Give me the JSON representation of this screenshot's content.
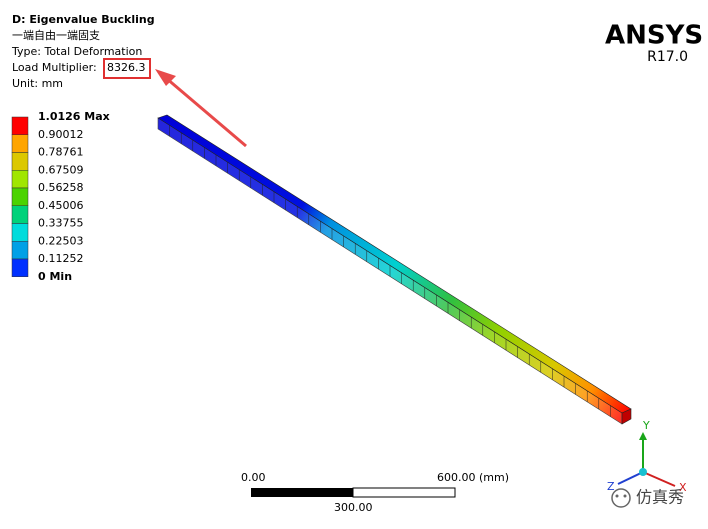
{
  "header": {
    "title": "D: Eigenvalue Buckling",
    "subtitle": "一端自由一端固支",
    "type": "Type: Total Deformation",
    "load_label": "Load Multiplier:",
    "load_value": "8326.3",
    "unit": "Unit: mm"
  },
  "legend": [
    {
      "label": "1.0126 Max",
      "color": "#ff0000"
    },
    {
      "label": "0.90012",
      "color": "#ffa500"
    },
    {
      "label": "0.78761",
      "color": "#dcc800"
    },
    {
      "label": "0.67509",
      "color": "#a0e600"
    },
    {
      "label": "0.56258",
      "color": "#4bd300"
    },
    {
      "label": "0.45006",
      "color": "#00d27a"
    },
    {
      "label": "0.33755",
      "color": "#00dcdc"
    },
    {
      "label": "0.22503",
      "color": "#00a0e6"
    },
    {
      "label": "0.11252",
      "color": "#0030ff"
    },
    {
      "label": "0 Min"
    }
  ],
  "logo": {
    "name": "ANSYS",
    "version": "R17.0"
  },
  "scale_bar": {
    "left": "0.00",
    "right": "600.00 (mm)",
    "middle": "300.00"
  },
  "triad": {
    "y": "Y",
    "z": "Z",
    "x": "X"
  },
  "watermark": "仿真秀"
}
